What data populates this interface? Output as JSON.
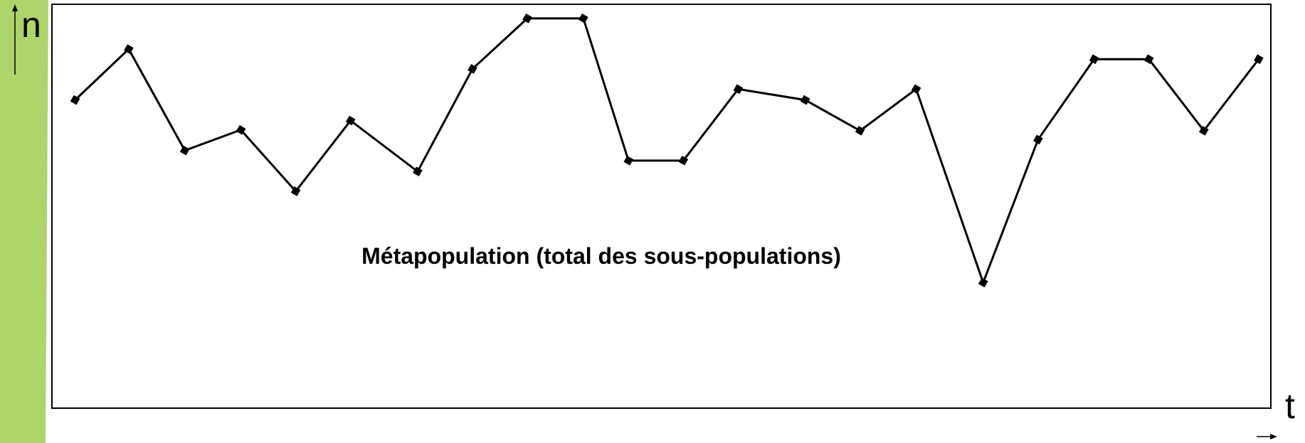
{
  "chart_data": {
    "type": "line",
    "annotation": "Métapopulation (total des sous-populations)",
    "ylabel": "n",
    "xlabel": "t",
    "x": [
      1.9,
      6.3,
      10.9,
      15.5,
      20.0,
      24.5,
      30.0,
      34.5,
      39.0,
      43.6,
      47.3,
      51.8,
      56.3,
      61.8,
      66.3,
      70.9,
      76.4,
      80.9,
      85.5,
      90.0,
      94.5,
      99.0
    ],
    "values": [
      76.3,
      88.9,
      63.8,
      68.9,
      53.7,
      71.2,
      58.6,
      84.0,
      96.5,
      96.5,
      61.3,
      61.3,
      79.0,
      76.3,
      68.7,
      79.0,
      31.1,
      66.5,
      86.4,
      86.4,
      68.7,
      86.4
    ],
    "color": "#000000",
    "xlim": [
      0,
      100
    ],
    "ylim": [
      0,
      100
    ]
  }
}
